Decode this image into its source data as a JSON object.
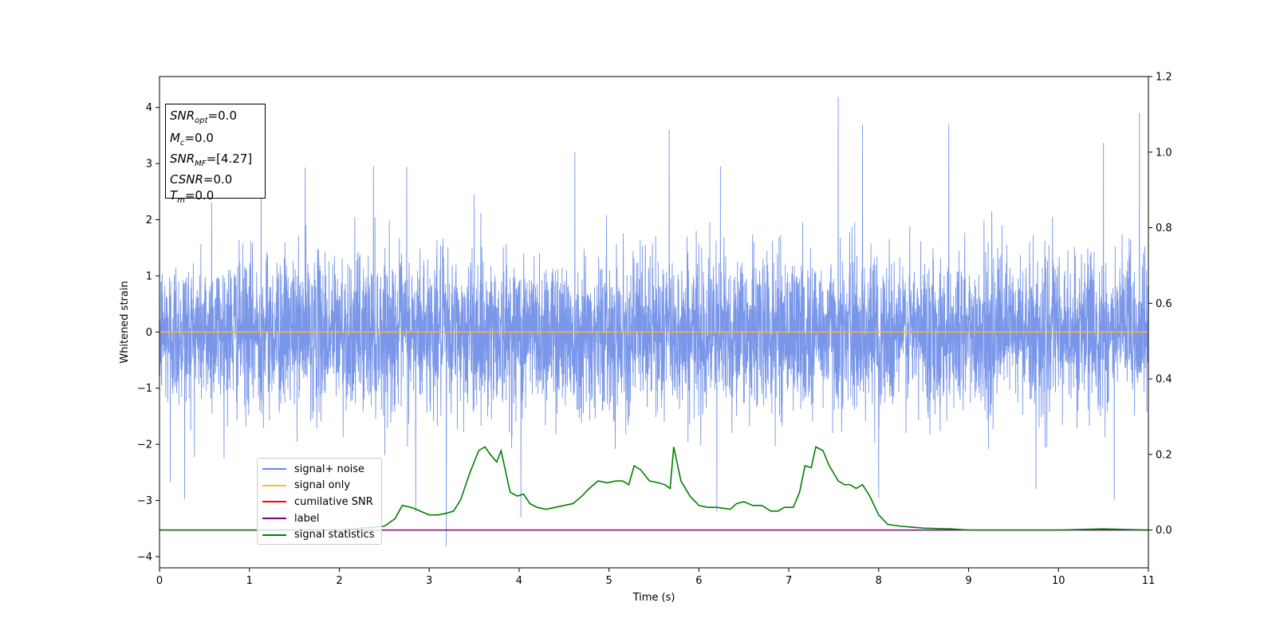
{
  "chart_data": {
    "type": "line",
    "xlabel": "Time (s)",
    "ylabel": "Whitened strain",
    "xlim": [
      0,
      11
    ],
    "ylim": [
      -4.2,
      4.55
    ],
    "y2lim": [
      -0.1,
      1.2
    ],
    "x_ticks": [
      "0",
      "1",
      "2",
      "3",
      "4",
      "5",
      "6",
      "7",
      "8",
      "9",
      "10",
      "11"
    ],
    "y_ticks": [
      "4",
      "3",
      "2",
      "1",
      "0",
      "−1",
      "−2",
      "−3",
      "−4"
    ],
    "y2_ticks": [
      "1.2",
      "1.0",
      "0.8",
      "0.6",
      "0.4",
      "0.2",
      "0.0"
    ],
    "grid": false,
    "legend_position": "lower-left",
    "series": [
      {
        "name": "signal+ noise",
        "color": "#6688e6",
        "axis": "left",
        "description_values": "Gaussian-like noise, roughly between -2.1 and 2.1, peaks up to 4.18",
        "peaks": [
          [
            0.28,
            2.6
          ],
          [
            0.58,
            2.3
          ],
          [
            1.13,
            2.92
          ],
          [
            1.62,
            2.93
          ],
          [
            2.38,
            2.95
          ],
          [
            2.75,
            2.94
          ],
          [
            3.5,
            2.45
          ],
          [
            4.62,
            3.2
          ],
          [
            5.67,
            3.6
          ],
          [
            6.24,
            2.95
          ],
          [
            7.55,
            4.18
          ],
          [
            7.82,
            3.7
          ],
          [
            8.78,
            3.7
          ],
          [
            10.5,
            3.37
          ],
          [
            10.9,
            3.9
          ]
        ],
        "troughs": [
          [
            0.12,
            -2.67
          ],
          [
            0.28,
            -2.98
          ],
          [
            2.85,
            -3.2
          ],
          [
            3.19,
            -3.82
          ],
          [
            4.02,
            -3.3
          ],
          [
            6.2,
            -3.2
          ],
          [
            8.0,
            -2.95
          ],
          [
            9.75,
            -2.8
          ],
          [
            10.62,
            -3.0
          ]
        ]
      },
      {
        "name": "signal only",
        "color": "#f5b642",
        "axis": "left",
        "x": [
          0,
          11
        ],
        "y": [
          0,
          0
        ]
      },
      {
        "name": "cumilative SNR",
        "color": "#ff0000",
        "axis": "right",
        "x": [],
        "y": []
      },
      {
        "name": "label",
        "color": "#800080",
        "axis": "right",
        "x": [
          0,
          11
        ],
        "y": [
          0,
          0
        ]
      },
      {
        "name": "signal statistics",
        "color": "#008000",
        "axis": "right",
        "x": [
          0,
          2.0,
          2.5,
          2.62,
          2.7,
          2.8,
          2.9,
          3.0,
          3.1,
          3.2,
          3.27,
          3.35,
          3.45,
          3.55,
          3.62,
          3.68,
          3.75,
          3.8,
          3.9,
          3.98,
          4.05,
          4.12,
          4.2,
          4.3,
          4.4,
          4.5,
          4.6,
          4.7,
          4.78,
          4.88,
          4.98,
          5.08,
          5.15,
          5.22,
          5.28,
          5.35,
          5.45,
          5.55,
          5.62,
          5.68,
          5.72,
          5.8,
          5.9,
          6.0,
          6.1,
          6.2,
          6.35,
          6.42,
          6.5,
          6.6,
          6.7,
          6.8,
          6.88,
          6.95,
          7.05,
          7.12,
          7.18,
          7.25,
          7.3,
          7.38,
          7.45,
          7.55,
          7.62,
          7.68,
          7.75,
          7.82,
          7.9,
          8.0,
          8.1,
          8.25,
          8.5,
          8.8,
          9.0,
          9.5,
          10.0,
          10.5,
          11.0
        ],
        "y": [
          0.0,
          0.0,
          0.01,
          0.03,
          0.065,
          0.06,
          0.05,
          0.04,
          0.04,
          0.045,
          0.05,
          0.08,
          0.15,
          0.21,
          0.22,
          0.2,
          0.18,
          0.21,
          0.1,
          0.09,
          0.095,
          0.07,
          0.06,
          0.055,
          0.06,
          0.065,
          0.07,
          0.09,
          0.11,
          0.13,
          0.125,
          0.13,
          0.13,
          0.12,
          0.17,
          0.16,
          0.13,
          0.125,
          0.12,
          0.11,
          0.22,
          0.13,
          0.09,
          0.065,
          0.06,
          0.06,
          0.055,
          0.07,
          0.075,
          0.065,
          0.065,
          0.05,
          0.05,
          0.06,
          0.06,
          0.1,
          0.17,
          0.165,
          0.22,
          0.21,
          0.17,
          0.13,
          0.12,
          0.12,
          0.11,
          0.12,
          0.09,
          0.04,
          0.015,
          0.01,
          0.005,
          0.003,
          0.0,
          0.0,
          0.0,
          0.003,
          0.0
        ]
      }
    ]
  },
  "stats_box": {
    "snr_opt": {
      "base": "SNR",
      "sub": "opt",
      "value": "=0.0"
    },
    "mc": {
      "base": "M",
      "sub": "c",
      "value": "=0.0"
    },
    "snr_mf": {
      "base": "SNR",
      "sub": "MF",
      "value": "=[4.27]"
    },
    "csnr": {
      "base": "CSNR",
      "value": "=0.0"
    },
    "tm": {
      "base": "T",
      "sub": "m",
      "value": "=0.0"
    }
  },
  "legend": {
    "items": [
      {
        "label": "signal+ noise",
        "color": "#6688e6"
      },
      {
        "label": "signal only",
        "color": "#f5b642"
      },
      {
        "label": "cumilative SNR",
        "color": "#ff0000"
      },
      {
        "label": "label",
        "color": "#800080"
      },
      {
        "label": "signal statistics",
        "color": "#008000"
      }
    ]
  }
}
